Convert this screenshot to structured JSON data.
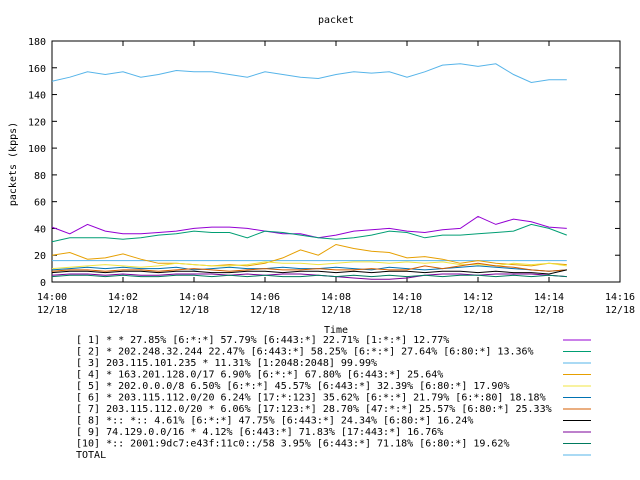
{
  "chart_data": {
    "type": "line",
    "title": "packet",
    "xlabel": "Time",
    "ylabel": "packets (kpps)",
    "ylim": [
      0,
      180
    ],
    "yticks": [
      0,
      20,
      40,
      60,
      80,
      100,
      120,
      140,
      160,
      180
    ],
    "xlim": [
      "14:00",
      "14:16"
    ],
    "xticks": [
      {
        "time": "14:00",
        "date": "12/18"
      },
      {
        "time": "14:02",
        "date": "12/18"
      },
      {
        "time": "14:04",
        "date": "12/18"
      },
      {
        "time": "14:06",
        "date": "12/18"
      },
      {
        "time": "14:08",
        "date": "12/18"
      },
      {
        "time": "14:10",
        "date": "12/18"
      },
      {
        "time": "14:12",
        "date": "12/18"
      },
      {
        "time": "14:14",
        "date": "12/18"
      },
      {
        "time": "14:16",
        "date": "12/18"
      }
    ],
    "grid": false,
    "legend_position": "bottom",
    "x": [
      "14:00",
      "14:00:30",
      "14:01",
      "14:01:30",
      "14:02",
      "14:02:30",
      "14:03",
      "14:03:30",
      "14:04",
      "14:04:30",
      "14:05",
      "14:05:30",
      "14:06",
      "14:06:30",
      "14:07",
      "14:07:30",
      "14:08",
      "14:08:30",
      "14:09",
      "14:09:30",
      "14:10",
      "14:10:30",
      "14:11",
      "14:11:30",
      "14:12",
      "14:12:30",
      "14:13",
      "14:13:30",
      "14:14",
      "14:14:30"
    ],
    "series": [
      {
        "name": "[ 1] * * 27.85%  [6:*:*] 57.79% [6:443:*] 22.71% [1:*:*] 12.77%",
        "color": "#9400d3",
        "values": [
          41,
          36,
          43,
          38,
          36,
          36,
          37,
          38,
          40,
          41,
          41,
          40,
          38,
          36,
          36,
          33,
          35,
          38,
          39,
          40,
          38,
          37,
          39,
          40,
          49,
          43,
          47,
          45,
          41,
          40
        ]
      },
      {
        "name": "[ 2] * 202.248.32.244 22.47%  [6:443:*] 58.25% [6:*:*] 27.64% [6:80:*] 13.36%",
        "color": "#009e73",
        "values": [
          30,
          33,
          33,
          33,
          32,
          33,
          35,
          36,
          38,
          37,
          37,
          33,
          38,
          37,
          35,
          33,
          32,
          33,
          35,
          38,
          37,
          33,
          35,
          35,
          36,
          37,
          38,
          43,
          40,
          35
        ]
      },
      {
        "name": "[ 3] 203.115.101.235 * 11.31%  [1:2048:2048] 99.99%",
        "color": "#56b4e9",
        "values": [
          16,
          16,
          16,
          16,
          16,
          16,
          16,
          16,
          16,
          16,
          16,
          16,
          16,
          16,
          16,
          16,
          16,
          16,
          16,
          16,
          16,
          16,
          16,
          16,
          16,
          16,
          16,
          16,
          16,
          16
        ]
      },
      {
        "name": "[ 4] * 163.201.128.0/17 6.90%  [6:*:*] 67.80% [6:443:*] 25.64%",
        "color": "#e69f00",
        "values": [
          20,
          22,
          17,
          18,
          21,
          17,
          14,
          14,
          13,
          12,
          13,
          12,
          14,
          18,
          24,
          20,
          28,
          25,
          23,
          22,
          18,
          19,
          17,
          14,
          16,
          14,
          13,
          12,
          14,
          13
        ]
      },
      {
        "name": "[ 5] * 202.0.0.0/8 6.50%  [6:*:*] 45.57% [6:443:*] 32.39% [6:80:*] 17.90%",
        "color": "#f0e442",
        "values": [
          10,
          11,
          12,
          13,
          12,
          11,
          12,
          14,
          13,
          12,
          12,
          13,
          15,
          14,
          14,
          13,
          14,
          15,
          15,
          14,
          15,
          14,
          15,
          13,
          13,
          12,
          14,
          13,
          14,
          12
        ]
      },
      {
        "name": "[ 6] * 203.115.112.0/20 6.24%  [17:*:123] 35.62% [6:*:*] 21.79% [6:*:80] 18.18%",
        "color": "#0072b2",
        "values": [
          9,
          10,
          11,
          10,
          11,
          10,
          10,
          11,
          9,
          10,
          11,
          10,
          10,
          11,
          10,
          10,
          11,
          10,
          9,
          11,
          10,
          9,
          10,
          11,
          12,
          11,
          10,
          9,
          8,
          9
        ]
      },
      {
        "name": "[ 7] 203.115.112.0/20 * 6.06%  [17:123:*] 28.70% [47:*:*] 25.57% [6:80:*] 25.33%",
        "color": "#d55e00",
        "values": [
          8,
          9,
          9,
          8,
          9,
          9,
          8,
          9,
          10,
          9,
          8,
          9,
          10,
          9,
          9,
          10,
          9,
          9,
          10,
          9,
          9,
          12,
          10,
          12,
          14,
          12,
          11,
          9,
          8,
          9
        ]
      },
      {
        "name": "[ 8] *:: *:: 4.61%  [6:*:*] 47.75% [6:443:*] 24.34% [6:80:*] 16.24%",
        "color": "#000000",
        "values": [
          7,
          8,
          8,
          7,
          8,
          8,
          7,
          8,
          8,
          7,
          7,
          8,
          8,
          7,
          8,
          8,
          7,
          8,
          7,
          8,
          8,
          7,
          8,
          8,
          7,
          8,
          7,
          7,
          6,
          9
        ]
      },
      {
        "name": "[ 9] 74.129.0.0/16 * 4.12%  [6:443:*] 71.83% [17:443:*] 16.76%",
        "color": "#7b0099",
        "values": [
          5,
          6,
          6,
          5,
          6,
          5,
          5,
          6,
          6,
          6,
          5,
          6,
          5,
          6,
          6,
          5,
          4,
          3,
          2,
          2,
          3,
          5,
          6,
          6,
          5,
          6,
          6,
          6,
          5,
          4
        ]
      },
      {
        "name": "[10] *:: 2001:9dc7:e43f:11c0::/58 3.95%  [6:443:*] 71.18% [6:80:*] 19.62%",
        "color": "#007a5e",
        "values": [
          4,
          5,
          5,
          4,
          5,
          4,
          4,
          5,
          5,
          4,
          5,
          4,
          5,
          4,
          4,
          5,
          4,
          5,
          4,
          5,
          4,
          5,
          4,
          5,
          5,
          4,
          5,
          4,
          5,
          4
        ]
      },
      {
        "name": "TOTAL",
        "color": "#56b4e9",
        "values": [
          150,
          153,
          157,
          155,
          157,
          153,
          155,
          158,
          157,
          157,
          155,
          153,
          157,
          155,
          153,
          152,
          155,
          157,
          156,
          157,
          153,
          157,
          162,
          163,
          161,
          163,
          155,
          149,
          151,
          151
        ]
      }
    ]
  }
}
